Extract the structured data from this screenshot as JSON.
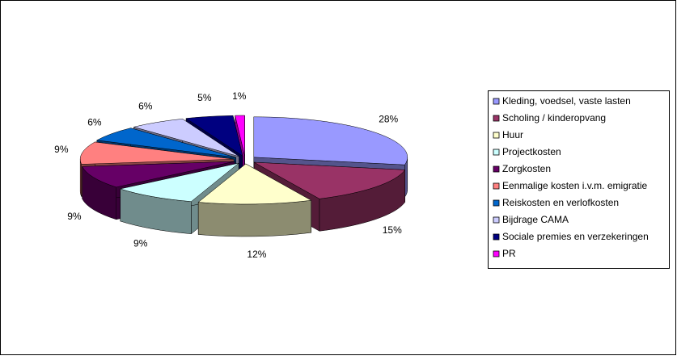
{
  "chart_data": {
    "type": "pie3d",
    "categories": [
      "Kleding, voedsel, vaste lasten",
      "Scholing / kinderopvang",
      "Huur",
      "Projectkosten",
      "Zorgkosten",
      "Eenmalige kosten i.v.m. emigratie",
      "Reiskosten en verlofkosten",
      "Bijdrage CAMA",
      "Sociale premies en verzekeringen",
      "PR"
    ],
    "values": [
      28,
      15,
      12,
      9,
      9,
      9,
      6,
      6,
      5,
      1
    ],
    "value_labels": [
      "28%",
      "15%",
      "12%",
      "9%",
      "9%",
      "9%",
      "6%",
      "6%",
      "5%",
      "1%"
    ],
    "colors": [
      "#9999ff",
      "#993366",
      "#ffffcc",
      "#ccffff",
      "#660066",
      "#ff8080",
      "#0066cc",
      "#ccccff",
      "#000080",
      "#ff00ff"
    ],
    "legend": "right"
  }
}
